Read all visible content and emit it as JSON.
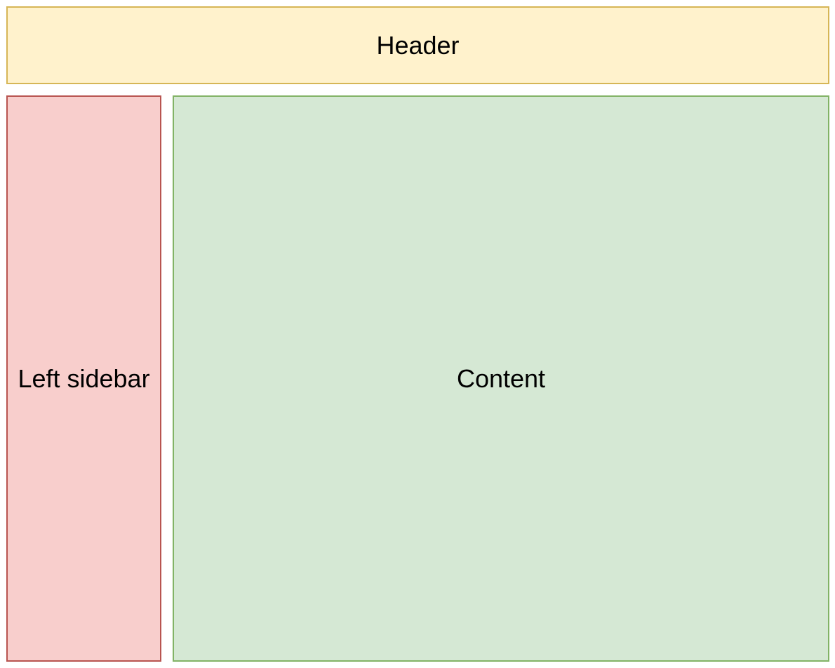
{
  "diagram": {
    "header": {
      "label": "Header",
      "fill_color": "#fff2cc",
      "border_color": "#d6b656"
    },
    "left_sidebar": {
      "label": "Left sidebar",
      "fill_color": "#f8cecc",
      "border_color": "#b85450"
    },
    "content": {
      "label": "Content",
      "fill_color": "#d5e8d4",
      "border_color": "#82b366"
    }
  }
}
